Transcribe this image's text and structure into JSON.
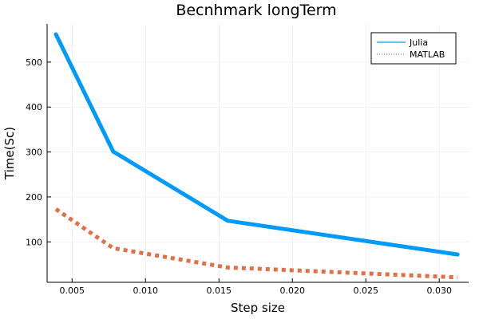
{
  "chart_data": {
    "type": "line",
    "title": "Becnhmark longTerm",
    "xlabel": "Step size",
    "ylabel": "Time(Sc)",
    "xlim": [
      0.0033,
      0.032
    ],
    "ylim": [
      10,
      585
    ],
    "xticks": [
      0.005,
      0.01,
      0.015,
      0.02,
      0.025,
      0.03
    ],
    "xtick_labels": [
      "0.005",
      "0.010",
      "0.015",
      "0.020",
      "0.025",
      "0.030"
    ],
    "yticks": [
      100,
      200,
      300,
      400,
      500
    ],
    "ytick_labels": [
      "100",
      "200",
      "300",
      "400",
      "500"
    ],
    "grid": true,
    "legend_position": "top-right",
    "series": [
      {
        "name": "Julia",
        "style": "solid",
        "color": "#009AFA",
        "x": [
          0.0039,
          0.0078,
          0.0156,
          0.03125
        ],
        "y": [
          562,
          301,
          147,
          72
        ]
      },
      {
        "name": "MATLAB",
        "style": "dotted",
        "color": "#E26F46",
        "x": [
          0.0039,
          0.0078,
          0.0156,
          0.03125
        ],
        "y": [
          173,
          86,
          43,
          21
        ]
      }
    ]
  }
}
